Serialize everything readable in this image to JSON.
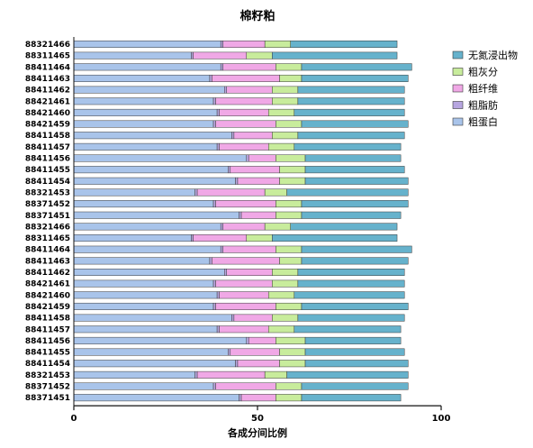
{
  "chart_data": {
    "type": "bar",
    "orientation": "horizontal",
    "stacked": true,
    "title": "棉籽粕",
    "xlabel": "各成分间比例",
    "ylabel": "",
    "xlim": [
      0,
      100
    ],
    "xticks": [
      "0",
      "50",
      "100"
    ],
    "grid": false,
    "legend_position": "right",
    "categories": [
      "88321466",
      "88311465",
      "88411464",
      "88411463",
      "88411462",
      "88421461",
      "88421460",
      "88421459",
      "88411458",
      "88411457",
      "88411456",
      "88411455",
      "88411454",
      "88321453",
      "88371452",
      "88371451",
      "88321466",
      "88311465",
      "88411464",
      "88411463",
      "88411462",
      "88421461",
      "88421460",
      "88421459",
      "88411458",
      "88411457",
      "88411456",
      "88411455",
      "88411454",
      "88321453",
      "88371452",
      "88371451"
    ],
    "series": [
      {
        "name": "粗蛋白",
        "color": "#a9c4ea",
        "values": [
          40,
          32,
          40,
          37,
          41,
          38,
          39,
          38,
          43,
          39,
          47,
          42,
          44,
          33,
          38,
          45,
          40,
          32,
          40,
          37,
          41,
          38,
          39,
          38,
          43,
          39,
          47,
          42,
          44,
          33,
          38,
          45
        ]
      },
      {
        "name": "粗脂肪",
        "color": "#b7a6e0",
        "values": [
          0.6,
          0.5,
          0.6,
          0.6,
          0.6,
          0.6,
          0.6,
          0.6,
          0.6,
          0.6,
          0.6,
          0.6,
          0.6,
          0.6,
          0.6,
          0.6,
          0.6,
          0.5,
          0.6,
          0.6,
          0.6,
          0.6,
          0.6,
          0.6,
          0.6,
          0.6,
          0.6,
          0.6,
          0.6,
          0.6,
          0.6,
          0.6
        ]
      },
      {
        "name": "粗纤维",
        "color": "#f0a8e6",
        "values": [
          11.4,
          14.5,
          14.4,
          18.4,
          12.4,
          15.4,
          13.4,
          16.4,
          10.4,
          13.4,
          7.4,
          13.4,
          11.4,
          18.4,
          16.4,
          9.4,
          11.4,
          14.5,
          14.4,
          18.4,
          12.4,
          15.4,
          13.4,
          16.4,
          10.4,
          13.4,
          7.4,
          13.4,
          11.4,
          18.4,
          16.4,
          9.4
        ]
      },
      {
        "name": "粗灰分",
        "color": "#c8ec9c",
        "values": [
          7,
          7,
          7,
          6,
          7,
          7,
          7,
          7,
          7,
          7,
          8,
          7,
          7,
          6,
          7,
          7,
          7,
          7,
          7,
          6,
          7,
          7,
          7,
          7,
          7,
          7,
          8,
          7,
          7,
          6,
          7,
          7
        ]
      },
      {
        "name": "无氮浸出物",
        "color": "#66b2cc",
        "values": [
          29,
          34,
          30,
          29,
          29,
          29,
          30,
          29,
          29,
          29,
          26,
          27,
          28,
          33,
          29,
          27,
          29,
          34,
          30,
          29,
          29,
          29,
          30,
          29,
          29,
          29,
          26,
          27,
          28,
          33,
          29,
          27
        ]
      }
    ]
  }
}
